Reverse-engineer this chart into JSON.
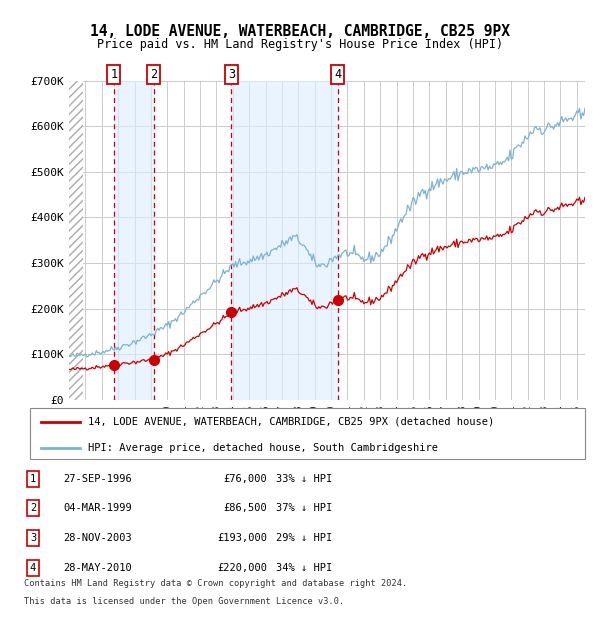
{
  "title": "14, LODE AVENUE, WATERBEACH, CAMBRIDGE, CB25 9PX",
  "subtitle": "Price paid vs. HM Land Registry's House Price Index (HPI)",
  "legend_line1": "14, LODE AVENUE, WATERBEACH, CAMBRIDGE, CB25 9PX (detached house)",
  "legend_line2": "HPI: Average price, detached house, South Cambridgeshire",
  "footer1": "Contains HM Land Registry data © Crown copyright and database right 2024.",
  "footer2": "This data is licensed under the Open Government Licence v3.0.",
  "transactions": [
    {
      "num": 1,
      "date": "27-SEP-1996",
      "price": 76000,
      "pct": "33%",
      "x_year": 1996.74
    },
    {
      "num": 2,
      "date": "04-MAR-1999",
      "price": 86500,
      "pct": "37%",
      "x_year": 1999.17
    },
    {
      "num": 3,
      "date": "28-NOV-2003",
      "price": 193000,
      "pct": "29%",
      "x_year": 2003.91
    },
    {
      "num": 4,
      "date": "28-MAY-2010",
      "price": 220000,
      "pct": "34%",
      "x_year": 2010.41
    }
  ],
  "hpi_color": "#7ab3d4",
  "price_color": "#cc0000",
  "dot_color": "#cc0000",
  "vline_color": "#cc0000",
  "background_shade_color": "#ddeeff",
  "hatch_color": "#bbbbbb",
  "grid_color": "#cccccc",
  "ylim": [
    0,
    700000
  ],
  "yticks": [
    0,
    100000,
    200000,
    300000,
    400000,
    500000,
    600000,
    700000
  ],
  "xlim_start": 1994.0,
  "xlim_end": 2025.5,
  "hpi_anchors": [
    [
      1994.0,
      95000
    ],
    [
      1995.0,
      100000
    ],
    [
      1996.0,
      105000
    ],
    [
      1997.0,
      115000
    ],
    [
      1998.0,
      127000
    ],
    [
      1999.0,
      143000
    ],
    [
      2000.0,
      163000
    ],
    [
      2001.0,
      192000
    ],
    [
      2002.0,
      228000
    ],
    [
      2003.0,
      260000
    ],
    [
      2004.0,
      295000
    ],
    [
      2005.0,
      305000
    ],
    [
      2006.0,
      318000
    ],
    [
      2007.0,
      340000
    ],
    [
      2007.75,
      357000
    ],
    [
      2008.3,
      342000
    ],
    [
      2008.8,
      308000
    ],
    [
      2009.3,
      293000
    ],
    [
      2009.7,
      298000
    ],
    [
      2010.0,
      308000
    ],
    [
      2010.5,
      318000
    ],
    [
      2011.0,
      323000
    ],
    [
      2011.5,
      315000
    ],
    [
      2012.0,
      308000
    ],
    [
      2012.5,
      312000
    ],
    [
      2013.0,
      322000
    ],
    [
      2013.5,
      345000
    ],
    [
      2014.0,
      375000
    ],
    [
      2014.5,
      408000
    ],
    [
      2015.0,
      430000
    ],
    [
      2015.5,
      455000
    ],
    [
      2016.0,
      465000
    ],
    [
      2016.5,
      475000
    ],
    [
      2017.0,
      482000
    ],
    [
      2017.5,
      490000
    ],
    [
      2018.0,
      498000
    ],
    [
      2018.5,
      502000
    ],
    [
      2019.0,
      505000
    ],
    [
      2019.5,
      508000
    ],
    [
      2020.0,
      510000
    ],
    [
      2020.5,
      520000
    ],
    [
      2021.0,
      535000
    ],
    [
      2021.5,
      558000
    ],
    [
      2022.0,
      578000
    ],
    [
      2022.5,
      598000
    ],
    [
      2023.0,
      592000
    ],
    [
      2023.5,
      600000
    ],
    [
      2024.0,
      608000
    ],
    [
      2024.5,
      615000
    ],
    [
      2025.0,
      622000
    ]
  ]
}
